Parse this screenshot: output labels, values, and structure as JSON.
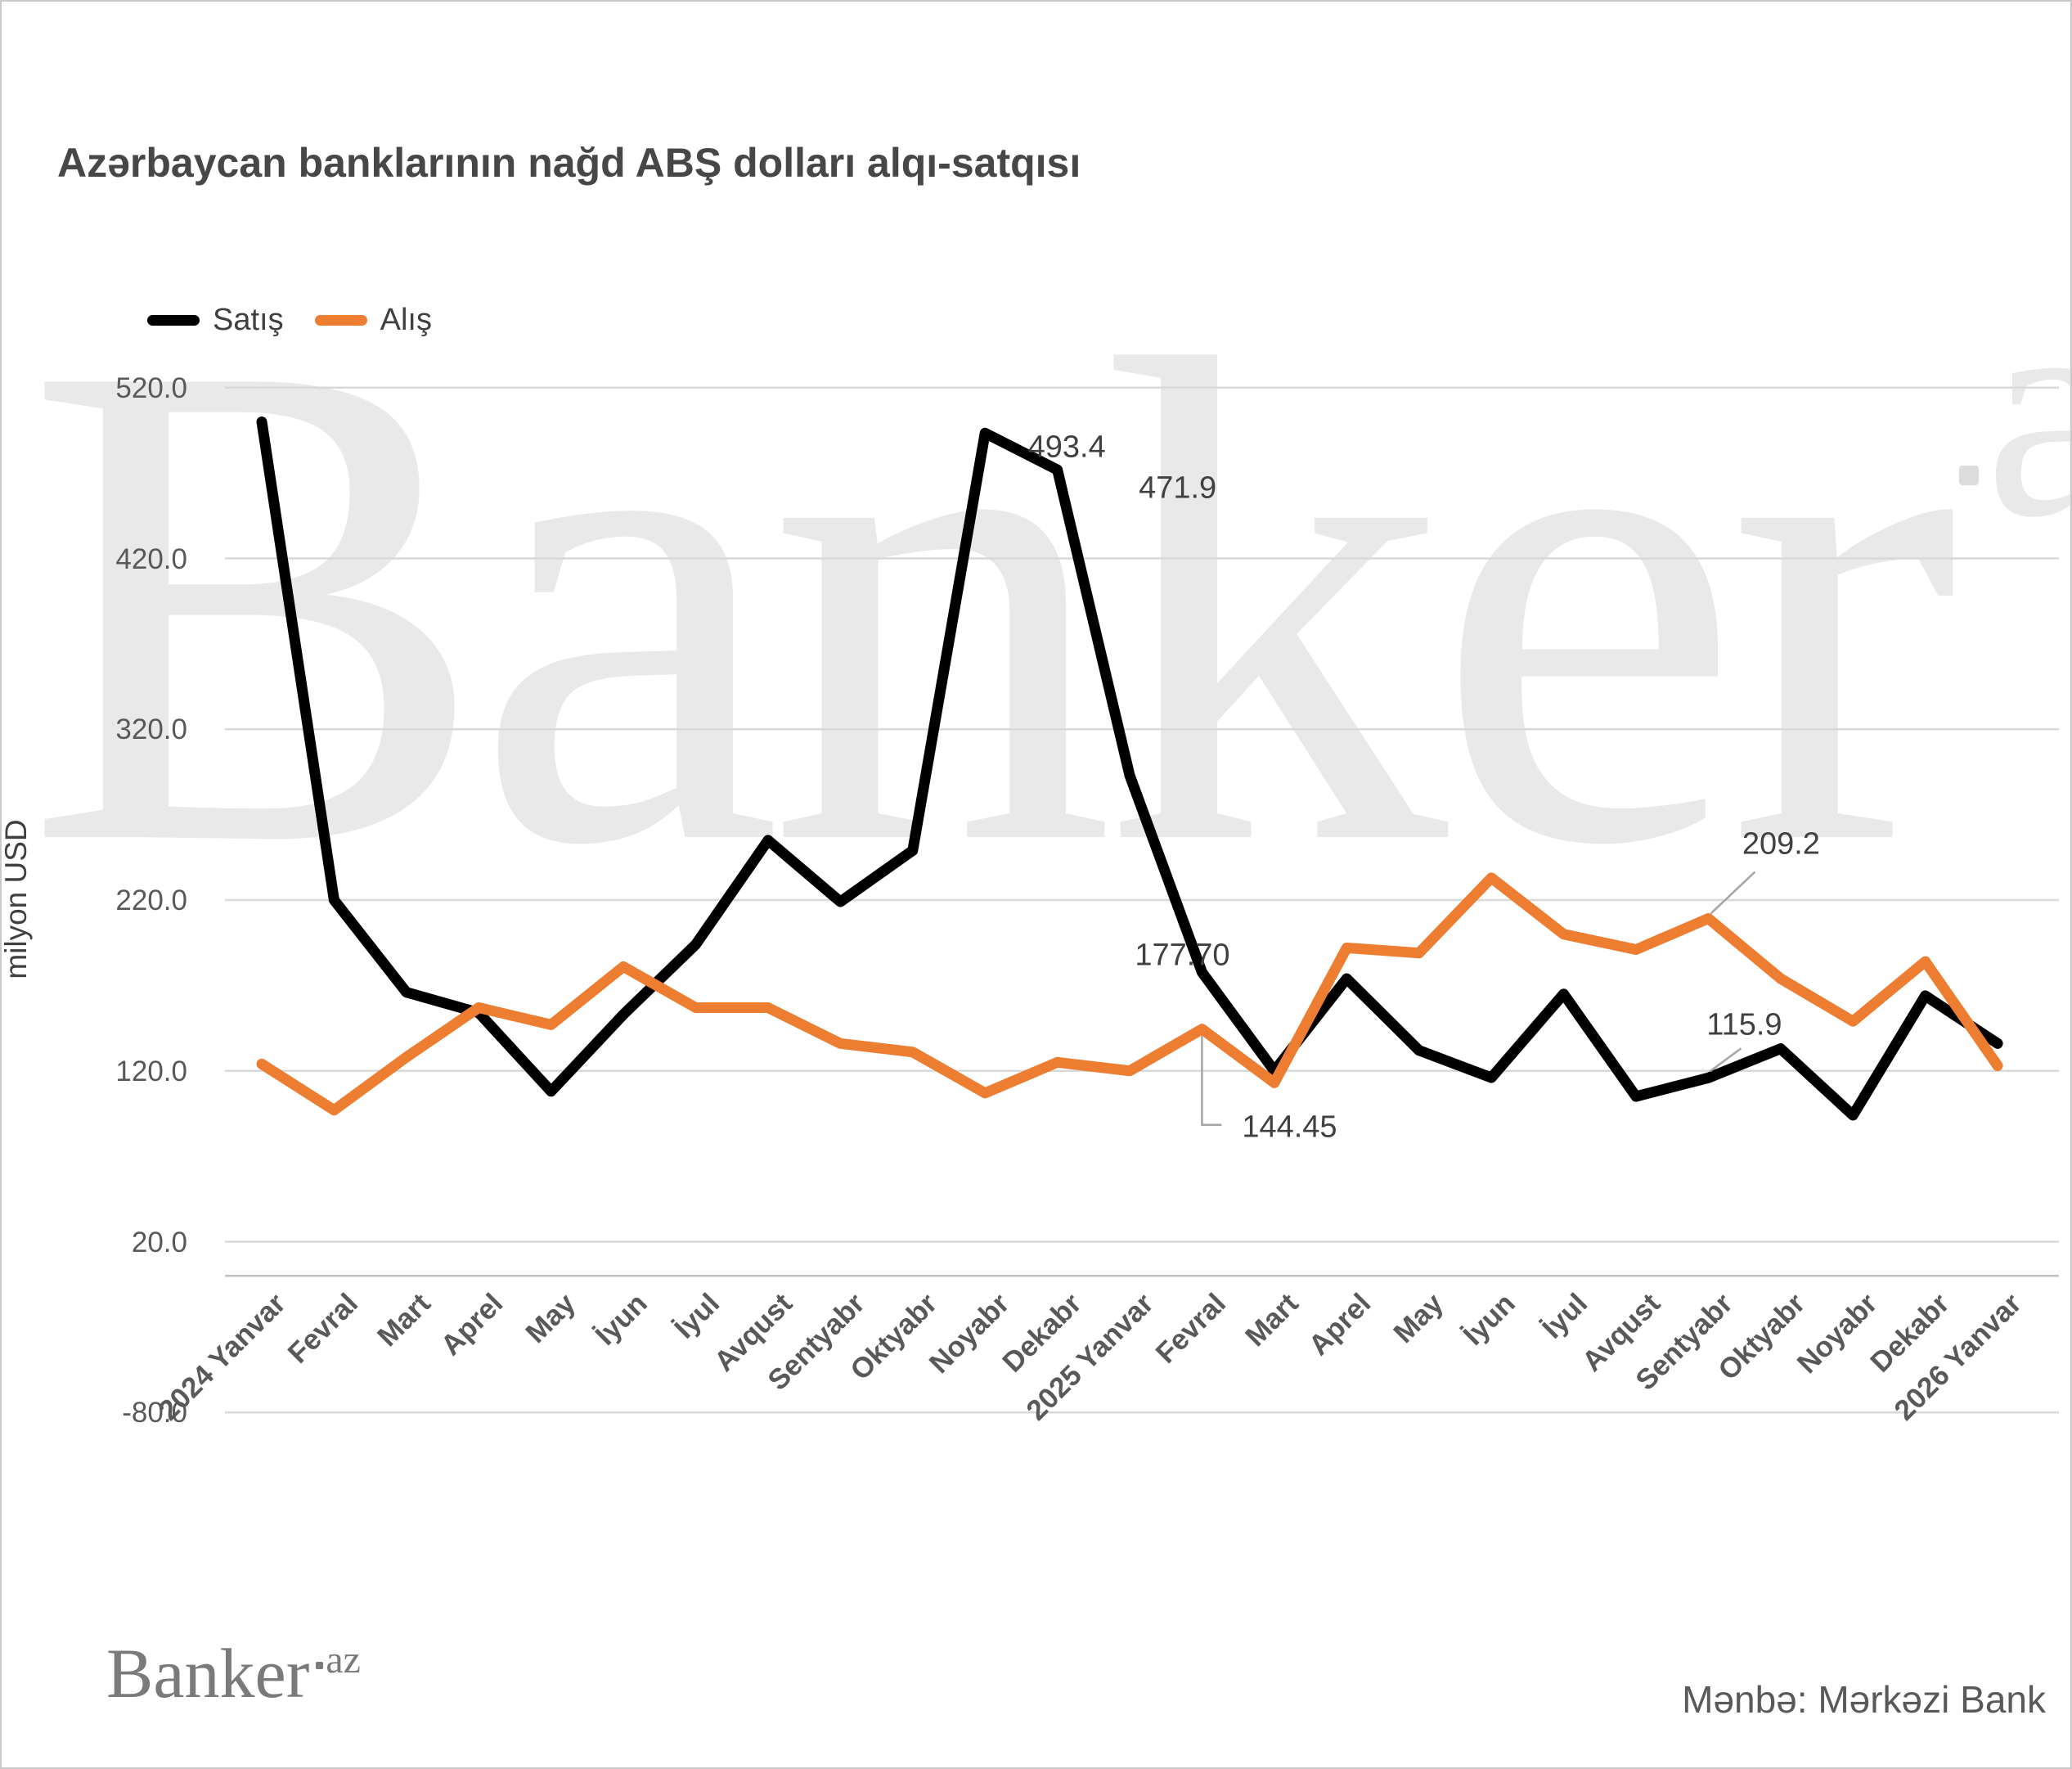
{
  "header": {
    "title": "Azərbaycan banklarının nağd ABŞ dolları alqı-satqısı"
  },
  "footer": {
    "logo_main": "Banker",
    "logo_suffix": "az",
    "source": "Mənbə: Mərkəzi Bank"
  },
  "watermark": {
    "main": "Banker",
    "suffix": "az"
  },
  "chart_data": {
    "type": "line",
    "title": "Azərbaycan banklarının nağd ABŞ dolları alqı-satqısı",
    "xlabel": "",
    "ylabel": "milyon USD",
    "ylim": [
      -80,
      520
    ],
    "yticks": [
      520.0,
      420.0,
      320.0,
      220.0,
      120.0,
      20.0,
      -80.0
    ],
    "grid": true,
    "legend_position": "top-left",
    "categories": [
      "2024 Yanvar",
      "Fevral",
      "Mart",
      "Aprel",
      "May",
      "İyun",
      "İyul",
      "Avqust",
      "Sentyabr",
      "Oktyabr",
      "Noyabr",
      "Dekabr",
      "2025 Yanvar",
      "Fevral",
      "Mart",
      "Aprel",
      "May",
      "İyun",
      "İyul",
      "Avqust",
      "Sentyabr",
      "Oktyabr",
      "Noyabr",
      "Dekabr",
      "2026 Yanvar"
    ],
    "series": [
      {
        "name": "Satış",
        "color": "#000000",
        "values": [
          500,
          220,
          166,
          154,
          108,
          153,
          194,
          255,
          219,
          249,
          493.4,
          471.9,
          293,
          177.7,
          120,
          174,
          132,
          116,
          165,
          105,
          115.9,
          133,
          94,
          164,
          136
        ]
      },
      {
        "name": "Alış",
        "color": "#ED7D31",
        "values": [
          124,
          97,
          128,
          157,
          147,
          181,
          157,
          157,
          136,
          131,
          107,
          125,
          120,
          144.45,
          113,
          192,
          189,
          233,
          200,
          191,
          209.2,
          174,
          149,
          184,
          123
        ]
      }
    ],
    "annotations": [
      {
        "id": "noy24",
        "series": 0,
        "index": 10,
        "text": "493.4"
      },
      {
        "id": "dek24",
        "series": 0,
        "index": 11,
        "text": "471.9"
      },
      {
        "id": "fev25s",
        "series": 0,
        "index": 13,
        "text": "177.70"
      },
      {
        "id": "fev25a",
        "series": 1,
        "index": 13,
        "text": "144.45"
      },
      {
        "id": "sen25a",
        "series": 1,
        "index": 20,
        "text": "209.2"
      },
      {
        "id": "sen25s",
        "series": 0,
        "index": 20,
        "text": "115.9"
      }
    ]
  }
}
